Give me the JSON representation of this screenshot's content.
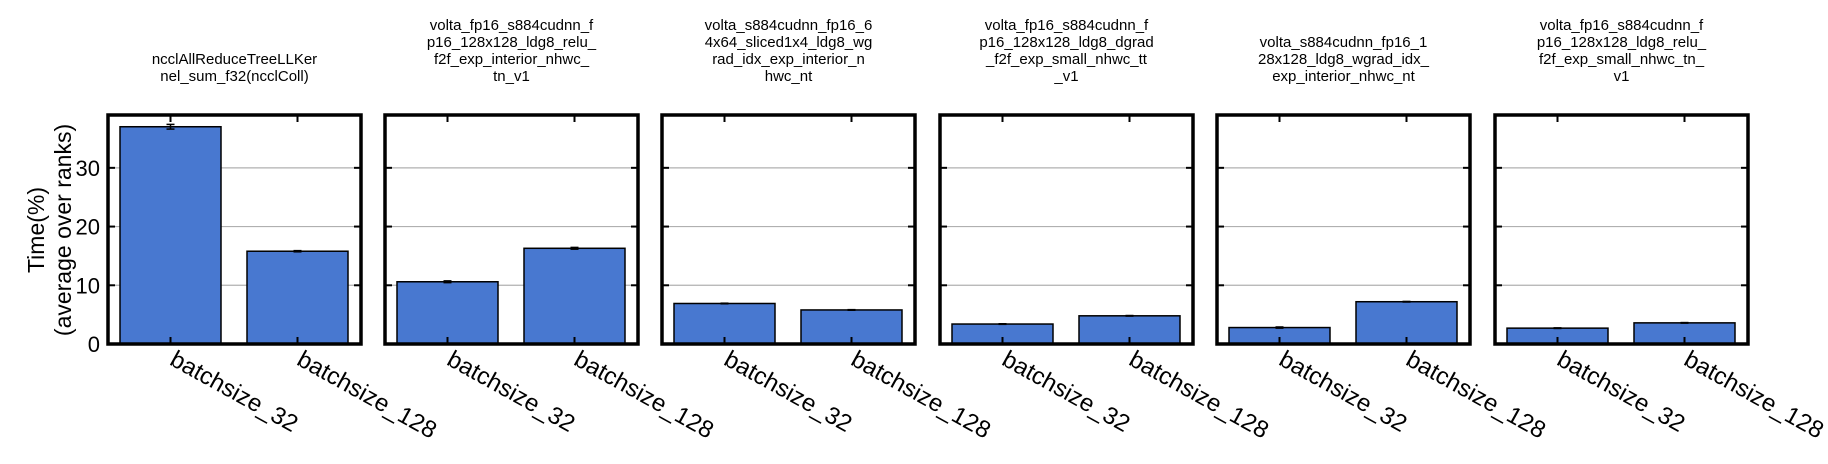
{
  "chart_data": {
    "type": "bar",
    "ylabel": [
      "Time(%)",
      "(average over ranks)"
    ],
    "ylim": [
      0,
      39
    ],
    "yticks": [
      0,
      10,
      20,
      30
    ],
    "grid": true,
    "bar_color": "#4878d0",
    "categories": [
      "batchsize_32",
      "batchsize_128"
    ],
    "panels": [
      {
        "title": [
          "ncclAllReduceTreeLLKer",
          "nel_sum_f32(ncclColl)"
        ],
        "values": [
          37.0,
          15.8
        ],
        "errors": [
          0.4,
          0.1
        ]
      },
      {
        "title": [
          "volta_fp16_s884cudnn_f",
          "p16_128x128_ldg8_relu_",
          "f2f_exp_interior_nhwc_",
          "tn_v1"
        ],
        "values": [
          10.6,
          16.3
        ],
        "errors": [
          0.15,
          0.15
        ]
      },
      {
        "title": [
          "volta_s884cudnn_fp16_6",
          "4x64_sliced1x4_ldg8_wg",
          "rad_idx_exp_interior_n",
          "hwc_nt"
        ],
        "values": [
          6.9,
          5.8
        ],
        "errors": [
          0.05,
          0.05
        ]
      },
      {
        "title": [
          "volta_fp16_s884cudnn_f",
          "p16_128x128_ldg8_dgrad",
          "_f2f_exp_small_nhwc_tt",
          "_v1"
        ],
        "values": [
          3.4,
          4.8
        ],
        "errors": [
          0.05,
          0.05
        ]
      },
      {
        "title": [
          "volta_s884cudnn_fp16_1",
          "28x128_ldg8_wgrad_idx_",
          "exp_interior_nhwc_nt"
        ],
        "values": [
          2.8,
          7.2
        ],
        "errors": [
          0.1,
          0.05
        ]
      },
      {
        "title": [
          "volta_fp16_s884cudnn_f",
          "p16_128x128_ldg8_relu_",
          "f2f_exp_small_nhwc_tn_",
          "v1"
        ],
        "values": [
          2.7,
          3.6
        ],
        "errors": [
          0.05,
          0.05
        ]
      }
    ]
  }
}
